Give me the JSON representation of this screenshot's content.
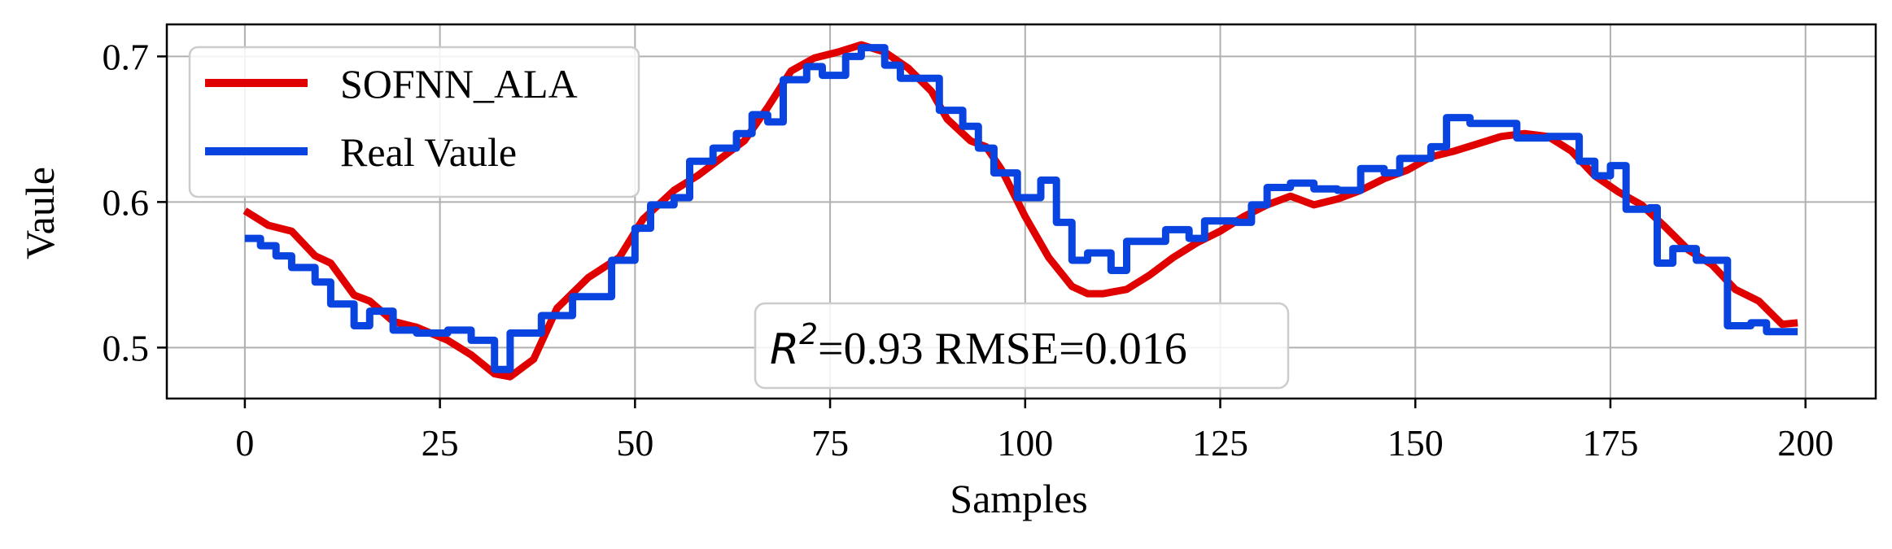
{
  "chart_data": {
    "type": "line",
    "xlabel": "Samples",
    "ylabel": "Vaule",
    "xlim": [
      -10,
      209
    ],
    "ylim": [
      0.465,
      0.722
    ],
    "xticks": [
      0,
      25,
      50,
      75,
      100,
      125,
      150,
      175,
      200
    ],
    "xtick_labels": [
      "0",
      "25",
      "50",
      "75",
      "100",
      "125",
      "150",
      "175",
      "200"
    ],
    "yticks": [
      0.5,
      0.6,
      0.7
    ],
    "ytick_labels": [
      "0.5",
      "0.6",
      "0.7"
    ],
    "grid": true,
    "legend_position": "upper-left",
    "annotation": {
      "r2_symbol": "R",
      "r2_exponent": "2",
      "text": "=0.93 RMSE=0.016"
    },
    "series": [
      {
        "name": "SOFNN_ALA",
        "color": "#e00000",
        "points": [
          [
            0,
            0.594
          ],
          [
            3,
            0.584
          ],
          [
            6,
            0.58
          ],
          [
            9,
            0.563
          ],
          [
            11,
            0.558
          ],
          [
            14,
            0.536
          ],
          [
            16,
            0.532
          ],
          [
            19,
            0.518
          ],
          [
            22,
            0.514
          ],
          [
            26,
            0.505
          ],
          [
            29,
            0.495
          ],
          [
            32,
            0.482
          ],
          [
            34,
            0.48
          ],
          [
            37,
            0.492
          ],
          [
            40,
            0.527
          ],
          [
            44,
            0.548
          ],
          [
            48,
            0.562
          ],
          [
            51,
            0.588
          ],
          [
            55,
            0.608
          ],
          [
            58,
            0.618
          ],
          [
            61,
            0.63
          ],
          [
            64,
            0.642
          ],
          [
            67,
            0.665
          ],
          [
            70,
            0.69
          ],
          [
            73,
            0.699
          ],
          [
            76,
            0.703
          ],
          [
            79,
            0.708
          ],
          [
            82,
            0.703
          ],
          [
            85,
            0.692
          ],
          [
            88,
            0.676
          ],
          [
            90,
            0.657
          ],
          [
            93,
            0.642
          ],
          [
            95,
            0.638
          ],
          [
            97,
            0.622
          ],
          [
            100,
            0.59
          ],
          [
            103,
            0.562
          ],
          [
            106,
            0.542
          ],
          [
            108,
            0.537
          ],
          [
            110,
            0.537
          ],
          [
            113,
            0.54
          ],
          [
            116,
            0.55
          ],
          [
            119,
            0.562
          ],
          [
            122,
            0.572
          ],
          [
            125,
            0.58
          ],
          [
            128,
            0.59
          ],
          [
            131,
            0.598
          ],
          [
            134,
            0.604
          ],
          [
            137,
            0.598
          ],
          [
            140,
            0.602
          ],
          [
            143,
            0.608
          ],
          [
            146,
            0.616
          ],
          [
            149,
            0.622
          ],
          [
            152,
            0.631
          ],
          [
            155,
            0.635
          ],
          [
            158,
            0.64
          ],
          [
            161,
            0.645
          ],
          [
            164,
            0.647
          ],
          [
            167,
            0.645
          ],
          [
            170,
            0.635
          ],
          [
            173,
            0.618
          ],
          [
            176,
            0.607
          ],
          [
            179,
            0.598
          ],
          [
            182,
            0.583
          ],
          [
            185,
            0.567
          ],
          [
            188,
            0.557
          ],
          [
            191,
            0.54
          ],
          [
            194,
            0.532
          ],
          [
            197,
            0.516
          ],
          [
            199,
            0.517
          ]
        ]
      },
      {
        "name": "Real Vaule",
        "color": "#0a44e0",
        "points": [
          [
            0,
            0.575
          ],
          [
            2,
            0.575
          ],
          [
            2,
            0.57
          ],
          [
            4,
            0.57
          ],
          [
            4,
            0.563
          ],
          [
            6,
            0.563
          ],
          [
            6,
            0.555
          ],
          [
            9,
            0.555
          ],
          [
            9,
            0.545
          ],
          [
            11,
            0.545
          ],
          [
            11,
            0.53
          ],
          [
            14,
            0.53
          ],
          [
            14,
            0.515
          ],
          [
            16,
            0.515
          ],
          [
            16,
            0.525
          ],
          [
            19,
            0.525
          ],
          [
            19,
            0.512
          ],
          [
            22,
            0.512
          ],
          [
            22,
            0.51
          ],
          [
            26,
            0.51
          ],
          [
            26,
            0.512
          ],
          [
            29,
            0.512
          ],
          [
            29,
            0.505
          ],
          [
            32,
            0.505
          ],
          [
            32,
            0.485
          ],
          [
            34,
            0.485
          ],
          [
            34,
            0.51
          ],
          [
            38,
            0.51
          ],
          [
            38,
            0.522
          ],
          [
            42,
            0.522
          ],
          [
            42,
            0.535
          ],
          [
            47,
            0.535
          ],
          [
            47,
            0.56
          ],
          [
            50,
            0.56
          ],
          [
            50,
            0.582
          ],
          [
            52,
            0.582
          ],
          [
            52,
            0.598
          ],
          [
            55,
            0.598
          ],
          [
            55,
            0.603
          ],
          [
            57,
            0.603
          ],
          [
            57,
            0.628
          ],
          [
            60,
            0.628
          ],
          [
            60,
            0.637
          ],
          [
            63,
            0.637
          ],
          [
            63,
            0.647
          ],
          [
            65,
            0.647
          ],
          [
            65,
            0.66
          ],
          [
            67,
            0.66
          ],
          [
            67,
            0.655
          ],
          [
            69,
            0.655
          ],
          [
            69,
            0.684
          ],
          [
            72,
            0.684
          ],
          [
            72,
            0.693
          ],
          [
            74,
            0.693
          ],
          [
            74,
            0.687
          ],
          [
            77,
            0.687
          ],
          [
            77,
            0.7
          ],
          [
            79,
            0.7
          ],
          [
            79,
            0.706
          ],
          [
            82,
            0.706
          ],
          [
            82,
            0.694
          ],
          [
            84,
            0.694
          ],
          [
            84,
            0.685
          ],
          [
            89,
            0.685
          ],
          [
            89,
            0.663
          ],
          [
            92,
            0.663
          ],
          [
            92,
            0.652
          ],
          [
            94,
            0.652
          ],
          [
            94,
            0.637
          ],
          [
            96,
            0.637
          ],
          [
            96,
            0.62
          ],
          [
            99,
            0.62
          ],
          [
            99,
            0.603
          ],
          [
            102,
            0.603
          ],
          [
            102,
            0.615
          ],
          [
            104,
            0.615
          ],
          [
            104,
            0.586
          ],
          [
            106,
            0.586
          ],
          [
            106,
            0.56
          ],
          [
            108,
            0.56
          ],
          [
            108,
            0.565
          ],
          [
            111,
            0.565
          ],
          [
            111,
            0.553
          ],
          [
            113,
            0.553
          ],
          [
            113,
            0.573
          ],
          [
            118,
            0.573
          ],
          [
            118,
            0.581
          ],
          [
            121,
            0.581
          ],
          [
            121,
            0.575
          ],
          [
            123,
            0.575
          ],
          [
            123,
            0.587
          ],
          [
            127,
            0.587
          ],
          [
            127,
            0.586
          ],
          [
            129,
            0.586
          ],
          [
            129,
            0.598
          ],
          [
            131,
            0.598
          ],
          [
            131,
            0.61
          ],
          [
            134,
            0.61
          ],
          [
            134,
            0.613
          ],
          [
            137,
            0.613
          ],
          [
            137,
            0.609
          ],
          [
            140,
            0.609
          ],
          [
            140,
            0.608
          ],
          [
            143,
            0.608
          ],
          [
            143,
            0.623
          ],
          [
            146,
            0.623
          ],
          [
            146,
            0.62
          ],
          [
            148,
            0.62
          ],
          [
            148,
            0.63
          ],
          [
            152,
            0.63
          ],
          [
            152,
            0.638
          ],
          [
            154,
            0.638
          ],
          [
            154,
            0.658
          ],
          [
            157,
            0.658
          ],
          [
            157,
            0.654
          ],
          [
            163,
            0.654
          ],
          [
            163,
            0.644
          ],
          [
            167,
            0.644
          ],
          [
            167,
            0.645
          ],
          [
            171,
            0.645
          ],
          [
            171,
            0.628
          ],
          [
            173,
            0.628
          ],
          [
            173,
            0.618
          ],
          [
            175,
            0.618
          ],
          [
            175,
            0.625
          ],
          [
            177,
            0.625
          ],
          [
            177,
            0.595
          ],
          [
            180,
            0.595
          ],
          [
            180,
            0.596
          ],
          [
            181,
            0.596
          ],
          [
            181,
            0.558
          ],
          [
            183,
            0.558
          ],
          [
            183,
            0.568
          ],
          [
            185,
            0.568
          ],
          [
            185,
            0.568
          ],
          [
            186,
            0.568
          ],
          [
            186,
            0.56
          ],
          [
            190,
            0.56
          ],
          [
            190,
            0.515
          ],
          [
            193,
            0.515
          ],
          [
            193,
            0.517
          ],
          [
            195,
            0.517
          ],
          [
            195,
            0.511
          ],
          [
            199,
            0.511
          ]
        ]
      }
    ]
  }
}
